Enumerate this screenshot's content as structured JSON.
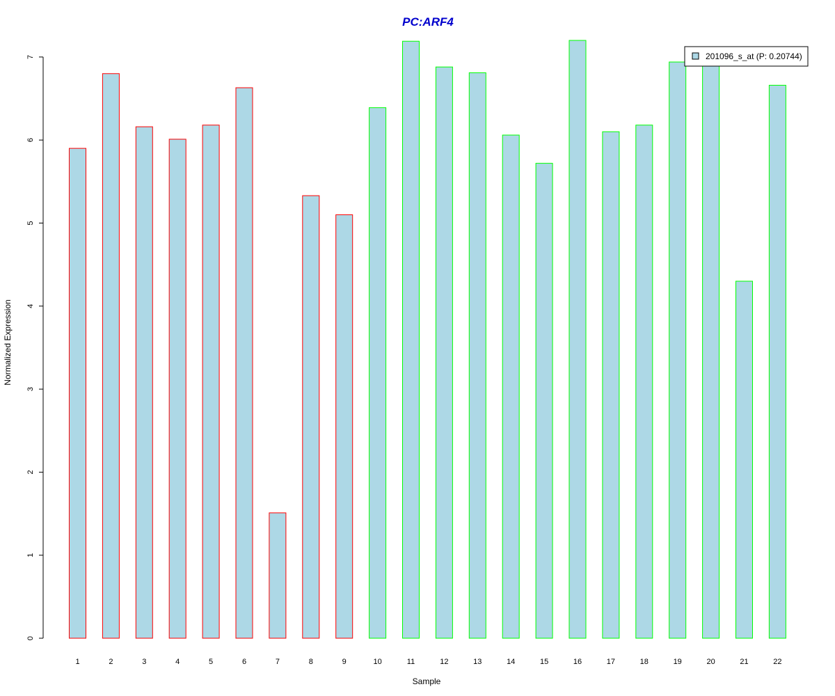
{
  "chart_data": {
    "type": "bar",
    "title": "PC:ARF4",
    "xlabel": "Sample",
    "ylabel": "Normalized Expression",
    "categories": [
      "1",
      "2",
      "3",
      "4",
      "5",
      "6",
      "7",
      "8",
      "9",
      "10",
      "11",
      "12",
      "13",
      "14",
      "15",
      "16",
      "17",
      "18",
      "19",
      "20",
      "21",
      "22"
    ],
    "values": [
      5.9,
      6.8,
      6.16,
      6.01,
      6.18,
      6.63,
      1.51,
      5.33,
      5.1,
      6.39,
      7.19,
      6.88,
      6.81,
      6.06,
      5.72,
      7.2,
      6.1,
      6.18,
      6.94,
      6.92,
      4.3,
      6.66
    ],
    "groups": [
      "red",
      "red",
      "red",
      "red",
      "red",
      "red",
      "red",
      "red",
      "red",
      "green",
      "green",
      "green",
      "green",
      "green",
      "green",
      "green",
      "green",
      "green",
      "green",
      "green",
      "green",
      "green"
    ],
    "yticks": [
      0,
      1,
      2,
      3,
      4,
      5,
      6,
      7
    ],
    "ylim": [
      0,
      7.25
    ],
    "legend": {
      "label": "201096_s_at (P: 0.20744)",
      "position": "top-right"
    },
    "grid": false,
    "colors": {
      "fill": "#add8e6",
      "group_red": "#ff0000",
      "group_green": "#00ff00",
      "title": "#0000cd",
      "axis": "#000000"
    }
  }
}
